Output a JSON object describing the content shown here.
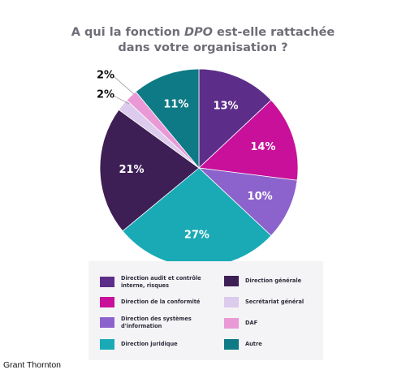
{
  "chart_data": {
    "type": "pie",
    "title": "A qui la fonction DPO est-elle rattachée dans votre organisation ?",
    "title_lines": [
      "A qui la fonction ",
      "DPO",
      " est-elle rattachée",
      "dans votre organisation ?"
    ],
    "slices": [
      {
        "label": "Direction audit et contrôle\ninterne, risques",
        "value": 13,
        "value_label": "13%",
        "color": "#5c2e8a",
        "label_color": "#ffffff"
      },
      {
        "label": "Direction de la conformité",
        "value": 14,
        "value_label": "14%",
        "color": "#c8109a",
        "label_color": "#ffffff"
      },
      {
        "label": "Direction des systèmes\nd'information",
        "value": 10,
        "value_label": "10%",
        "color": "#8c63cc",
        "label_color": "#ffffff"
      },
      {
        "label": "Direction juridique",
        "value": 27,
        "value_label": "27%",
        "color": "#1aaab5",
        "label_color": "#ffffff"
      },
      {
        "label": "Direction générale",
        "value": 21,
        "value_label": "21%",
        "color": "#3d1f55",
        "label_color": "#ffffff"
      },
      {
        "label": "Secrétariat général",
        "value": 2,
        "value_label": "2%",
        "color": "#dccbec",
        "label_color": "#111111"
      },
      {
        "label": "DAF",
        "value": 2,
        "value_label": "2%",
        "color": "#e99ad6",
        "label_color": "#111111"
      },
      {
        "label": "Autre",
        "value": 11,
        "value_label": "11%",
        "color": "#0e7a85",
        "label_color": "#ffffff"
      }
    ],
    "legend_placement": "bottom"
  },
  "footer": {
    "source": "Grant Thornton"
  }
}
